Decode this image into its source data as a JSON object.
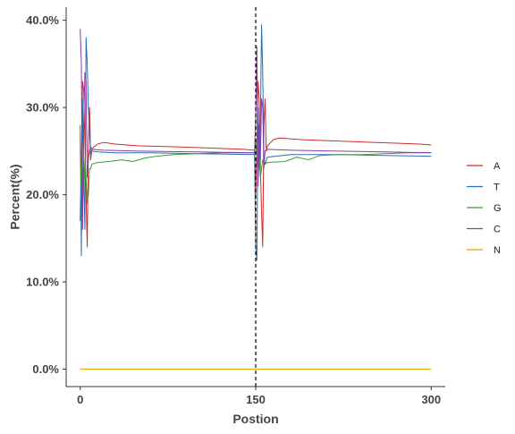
{
  "chart_data": {
    "type": "line",
    "xlabel": "Postion",
    "ylabel": "Percent(%)",
    "xlim": [
      -12,
      312
    ],
    "ylim": [
      -2.0,
      41.5
    ],
    "x_ticks": [
      {
        "value": 0,
        "label": "0"
      },
      {
        "value": 150,
        "label": "150"
      },
      {
        "value": 300,
        "label": "300"
      }
    ],
    "y_ticks": [
      {
        "value": 0,
        "label": "0.0%"
      },
      {
        "value": 10,
        "label": "10.0%"
      },
      {
        "value": 20,
        "label": "20.0%"
      },
      {
        "value": 30,
        "label": "30.0%"
      },
      {
        "value": 40,
        "label": "40.0%"
      }
    ],
    "vline": {
      "x": 150,
      "style": "dashed",
      "color": "#000000"
    },
    "grid": false,
    "legend_position": "right",
    "series": [
      {
        "name": "A",
        "color": "#cf2a2a",
        "points": [
          [
            0,
            17
          ],
          [
            1,
            24
          ],
          [
            2,
            33
          ],
          [
            3,
            32
          ],
          [
            4,
            26
          ],
          [
            5,
            20
          ],
          [
            6,
            14
          ],
          [
            7,
            26
          ],
          [
            8,
            30
          ],
          [
            9,
            24
          ],
          [
            10,
            25.2
          ],
          [
            12,
            25.5
          ],
          [
            15,
            25.8
          ],
          [
            20,
            26.0
          ],
          [
            30,
            25.8
          ],
          [
            50,
            25.6
          ],
          [
            80,
            25.5
          ],
          [
            100,
            25.4
          ],
          [
            120,
            25.3
          ],
          [
            140,
            25.2
          ],
          [
            149,
            25.1
          ],
          [
            150,
            20
          ],
          [
            151,
            26
          ],
          [
            152,
            33
          ],
          [
            153,
            31
          ],
          [
            154,
            23
          ],
          [
            155,
            18
          ],
          [
            156,
            14
          ],
          [
            157,
            28
          ],
          [
            158,
            31
          ],
          [
            159,
            25
          ],
          [
            160,
            25.6
          ],
          [
            165,
            26.3
          ],
          [
            170,
            26.5
          ],
          [
            190,
            26.3
          ],
          [
            210,
            26.2
          ],
          [
            230,
            26.1
          ],
          [
            250,
            26.0
          ],
          [
            270,
            25.9
          ],
          [
            290,
            25.8
          ],
          [
            300,
            25.7
          ]
        ]
      },
      {
        "name": "T",
        "color": "#2c6fae",
        "points": [
          [
            0,
            28
          ],
          [
            1,
            13
          ],
          [
            2,
            31
          ],
          [
            3,
            22
          ],
          [
            4,
            16
          ],
          [
            5,
            38
          ],
          [
            6,
            35
          ],
          [
            7,
            30
          ],
          [
            8,
            27
          ],
          [
            9,
            24.5
          ],
          [
            10,
            25
          ],
          [
            15,
            24.9
          ],
          [
            30,
            24.8
          ],
          [
            60,
            24.8
          ],
          [
            100,
            24.7
          ],
          [
            149,
            24.6
          ],
          [
            150,
            14
          ],
          [
            151,
            12.5
          ],
          [
            152,
            30
          ],
          [
            153,
            24
          ],
          [
            154,
            28
          ],
          [
            155,
            39.5
          ],
          [
            156,
            34
          ],
          [
            157,
            24
          ],
          [
            158,
            23.5
          ],
          [
            160,
            24.3
          ],
          [
            180,
            24.6
          ],
          [
            220,
            24.6
          ],
          [
            260,
            24.5
          ],
          [
            300,
            24.4
          ]
        ]
      },
      {
        "name": "G",
        "color": "#3a9a3a",
        "points": [
          [
            0,
            25
          ],
          [
            1,
            21
          ],
          [
            2,
            23
          ],
          [
            3,
            20
          ],
          [
            4,
            24
          ],
          [
            5,
            22
          ],
          [
            6,
            19
          ],
          [
            7,
            20
          ],
          [
            8,
            23
          ],
          [
            9,
            23
          ],
          [
            10,
            23.5
          ],
          [
            15,
            23.7
          ],
          [
            25,
            23.8
          ],
          [
            35,
            24.0
          ],
          [
            45,
            23.8
          ],
          [
            55,
            24.2
          ],
          [
            65,
            24.4
          ],
          [
            80,
            24.6
          ],
          [
            100,
            24.7
          ],
          [
            120,
            24.8
          ],
          [
            149,
            24.8
          ],
          [
            150,
            26
          ],
          [
            151,
            24
          ],
          [
            152,
            22
          ],
          [
            153,
            24
          ],
          [
            154,
            22
          ],
          [
            155,
            23
          ],
          [
            156,
            24
          ],
          [
            158,
            23.5
          ],
          [
            160,
            23.7
          ],
          [
            175,
            23.8
          ],
          [
            185,
            24.3
          ],
          [
            195,
            24.0
          ],
          [
            205,
            24.5
          ],
          [
            220,
            24.6
          ],
          [
            240,
            24.6
          ],
          [
            260,
            24.7
          ],
          [
            280,
            24.8
          ],
          [
            300,
            24.8
          ]
        ]
      },
      {
        "name": "C",
        "color": "#8a3aa8",
        "points": [
          [
            0,
            39
          ],
          [
            1,
            35
          ],
          [
            2,
            16
          ],
          [
            3,
            28
          ],
          [
            4,
            34
          ],
          [
            5,
            33
          ],
          [
            6,
            22
          ],
          [
            7,
            24
          ],
          [
            8,
            25
          ],
          [
            9,
            25.5
          ],
          [
            10,
            25.2
          ],
          [
            20,
            25.1
          ],
          [
            50,
            25.0
          ],
          [
            100,
            24.9
          ],
          [
            149,
            24.8
          ],
          [
            150,
            29
          ],
          [
            151,
            37
          ],
          [
            152,
            21
          ],
          [
            153,
            28
          ],
          [
            154,
            24
          ],
          [
            155,
            31
          ],
          [
            156,
            30
          ],
          [
            157,
            23
          ],
          [
            158,
            25
          ],
          [
            160,
            25.2
          ],
          [
            180,
            25.1
          ],
          [
            220,
            25.0
          ],
          [
            260,
            24.9
          ],
          [
            300,
            24.8
          ]
        ]
      },
      {
        "name": "N",
        "color": "#e69f00",
        "points": [
          [
            0,
            0.1
          ],
          [
            1,
            0
          ],
          [
            300,
            0
          ]
        ]
      }
    ]
  }
}
